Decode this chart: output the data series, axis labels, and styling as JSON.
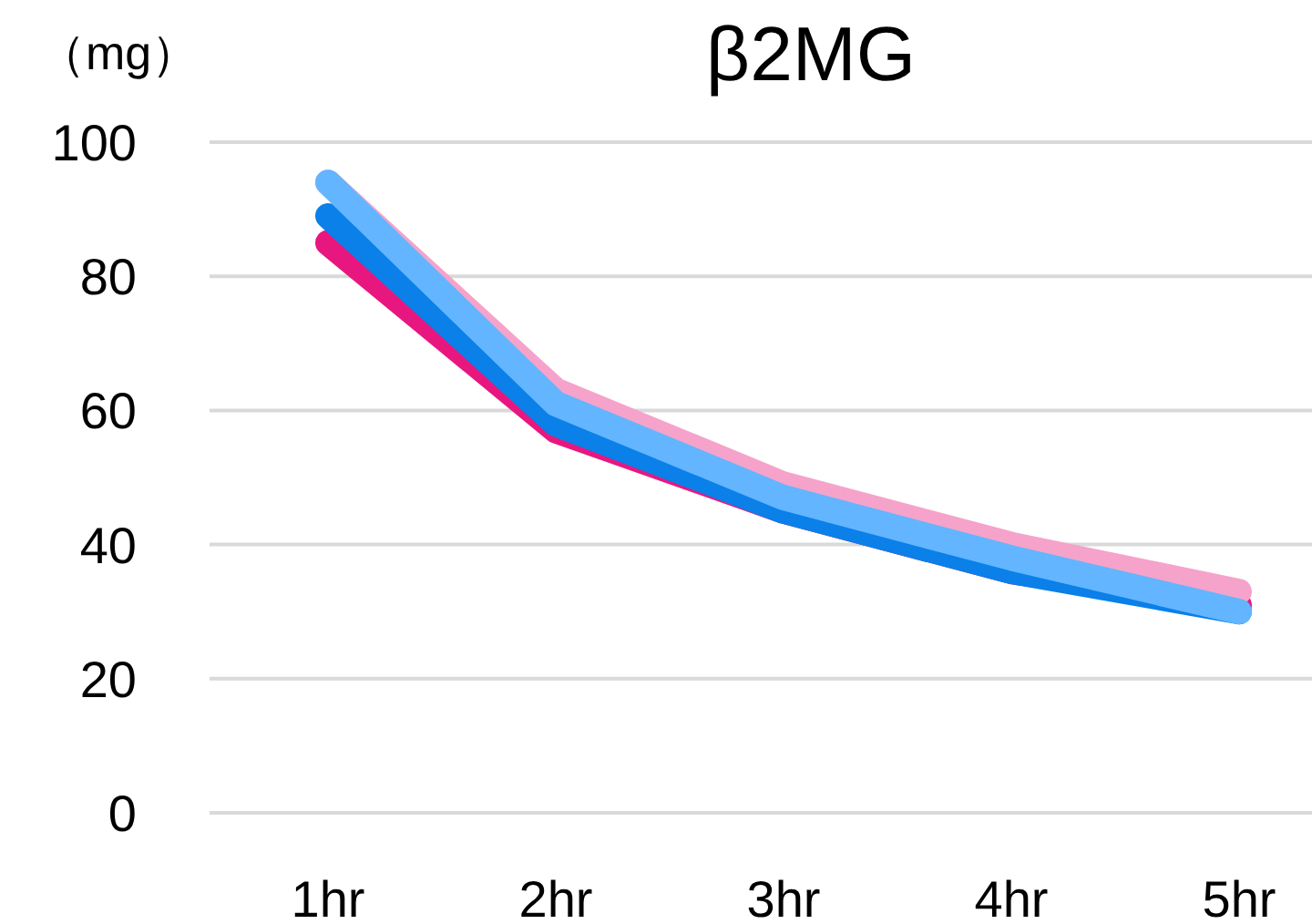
{
  "chart_data": {
    "type": "line",
    "title": "β2MG",
    "ylabel": "（mg）",
    "categories": [
      "1hr",
      "2hr",
      "3hr",
      "4hr",
      "5hr"
    ],
    "series": [
      {
        "color": "#e8177f",
        "values": [
          85,
          57,
          45,
          36,
          31
        ]
      },
      {
        "color": "#0a80e8",
        "values": [
          89,
          58,
          45,
          36,
          30
        ]
      },
      {
        "color": "#f5a3ca",
        "values": [
          94,
          63,
          49,
          40,
          33
        ]
      },
      {
        "color": "#63b5ff",
        "values": [
          94,
          61,
          47,
          38,
          30
        ]
      }
    ],
    "ylim": [
      0,
      100
    ],
    "yticks": [
      0,
      20,
      40,
      60,
      80,
      100
    ],
    "grid": "y",
    "line_style": "solid",
    "marker": "none"
  }
}
